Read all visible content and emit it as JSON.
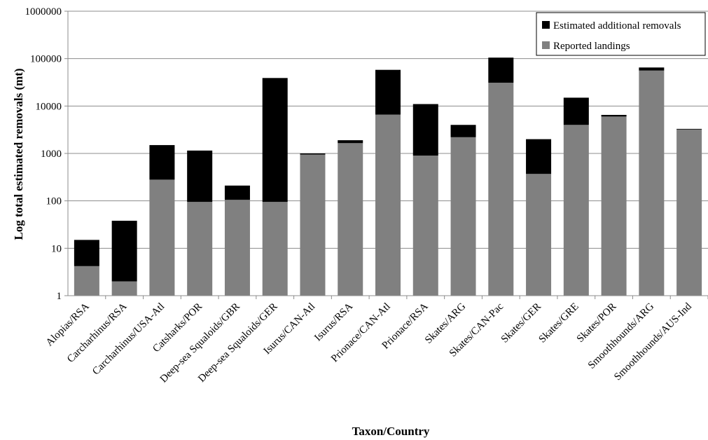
{
  "chart_data": {
    "type": "bar",
    "stacked": true,
    "yscale": "log",
    "ylim": [
      1,
      1000000
    ],
    "yticks": [
      "1",
      "10",
      "100",
      "1000",
      "10000",
      "100000",
      "1000000"
    ],
    "ytick_values": [
      1,
      10,
      100,
      1000,
      10000,
      100000,
      1000000
    ],
    "xlabel": "Taxon/Country",
    "ylabel": "Log total estimated removals (mt)",
    "grid": true,
    "legend_position": "top-right",
    "categories": [
      "Alopias/RSA",
      "Carcharhinus/RSA",
      "Carcharhinus/USA-Atl",
      "Catsharks/POR",
      "Deep-sea Squaloids/GBR",
      "Deep-sea Squaloids/GER",
      "Isurus/CAN-Atl",
      "Isurus/RSA",
      "Prionace/CAN-Atl",
      "Prionace/RSA",
      "Skates/ARG",
      "Skates/CAN-Pac",
      "Skates/GER",
      "Skates/GRE",
      "Skates/POR",
      "Smoothhounds/ARG",
      "Smoothhounds/AUS-Ind"
    ],
    "series": [
      {
        "name": "Reported landings",
        "color": "#808080",
        "values": [
          4.2,
          2,
          280,
          95,
          105,
          95,
          950,
          1650,
          6600,
          900,
          2200,
          31000,
          370,
          4000,
          6000,
          56000,
          3200
        ]
      },
      {
        "name": "Estimated additional removals",
        "color": "#000000",
        "values": [
          10.8,
          36,
          1220,
          1055,
          105,
          38905,
          50,
          250,
          51400,
          10100,
          1800,
          74000,
          1630,
          11000,
          500,
          9000,
          100
        ]
      }
    ],
    "legend_order": [
      "Estimated additional removals",
      "Reported landings"
    ]
  }
}
